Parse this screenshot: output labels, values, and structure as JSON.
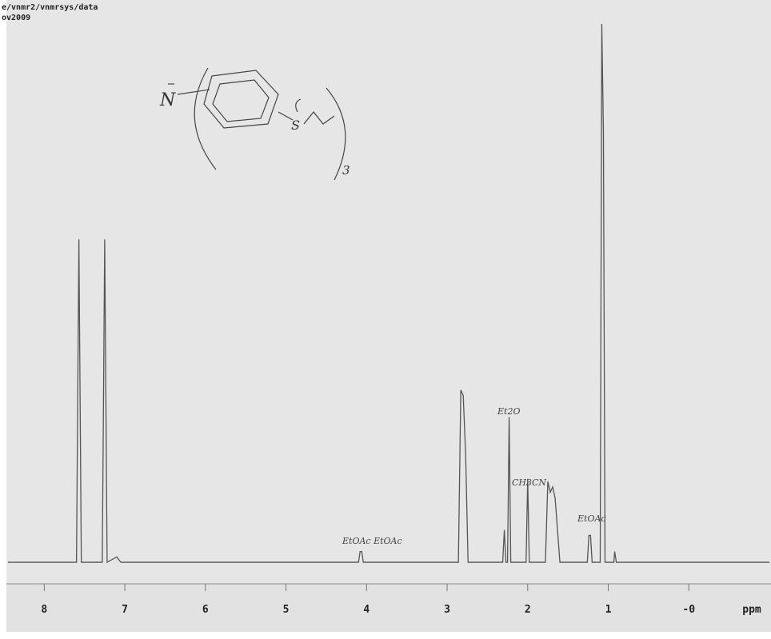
{
  "header": {
    "path": "e/vnmr2/vnmrsys/data",
    "date": "ov2009"
  },
  "structure": {
    "atom": "N",
    "sulfur": "S",
    "count": "3"
  },
  "chart_data": {
    "type": "line",
    "x": [
      8.45,
      7.6,
      7.57,
      7.54,
      7.28,
      7.25,
      7.22,
      7.1,
      7.05,
      4.1,
      4.08,
      4.06,
      4.04,
      2.86,
      2.83,
      2.8,
      2.77,
      2.74,
      2.31,
      2.29,
      2.27,
      2.25,
      2.23,
      2.21,
      2.02,
      2.0,
      1.98,
      1.78,
      1.75,
      1.72,
      1.69,
      1.66,
      1.63,
      1.6,
      1.26,
      1.24,
      1.22,
      1.2,
      1.1,
      1.08,
      1.06,
      1.04,
      0.93,
      0.92,
      0.9,
      -1.0
    ],
    "series": [
      {
        "name": "spectrum",
        "color": "#555555",
        "values": [
          0,
          0,
          60,
          0,
          0,
          60,
          0,
          1,
          0,
          0,
          2,
          2,
          0,
          0,
          32,
          31,
          20,
          0,
          0,
          6,
          0,
          0,
          27,
          0,
          0,
          15.5,
          0,
          0,
          15,
          13,
          14,
          12,
          6,
          0,
          0,
          5,
          5,
          0,
          0,
          100,
          80,
          0,
          0,
          2,
          0,
          0
        ]
      }
    ],
    "xlim": [
      8.47,
      -1.02
    ],
    "ylim": [
      -4,
      100
    ],
    "xticks": [
      8,
      7,
      6,
      5,
      4,
      3,
      2,
      1,
      {
        "value": 0,
        "label": "-0"
      }
    ],
    "x_label": "ppm",
    "annotations": [
      "Et2O",
      "CH3CN",
      "EtOAc EtOAc",
      "EtOAc"
    ]
  }
}
